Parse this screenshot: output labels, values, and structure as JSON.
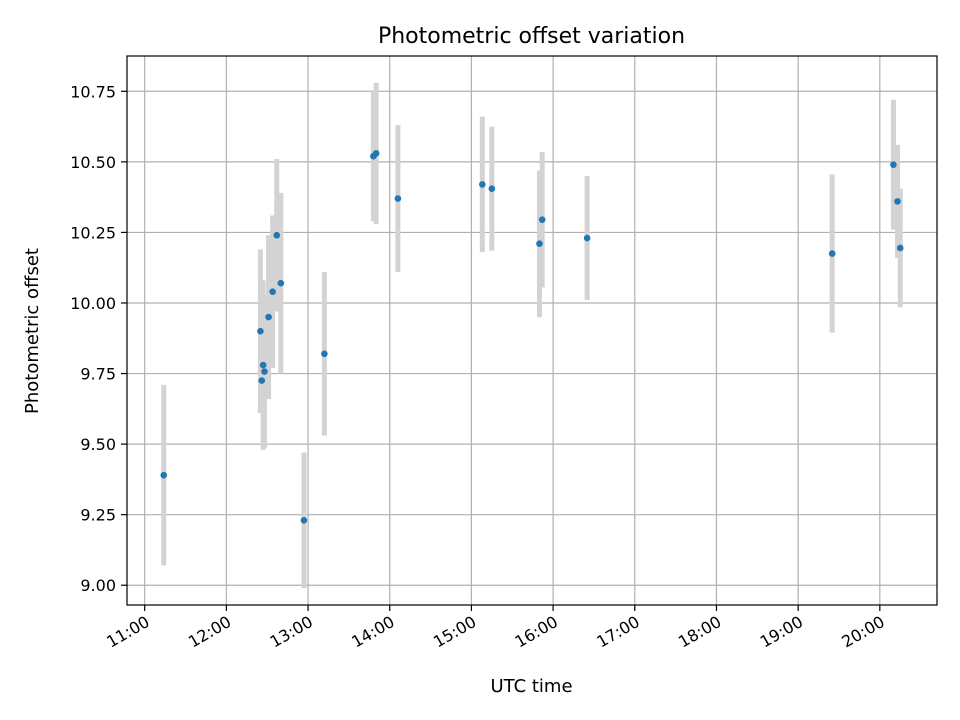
{
  "chart_data": {
    "type": "scatter",
    "title": "Photometric offset variation",
    "xlabel": "UTC time",
    "ylabel": "Photometric offset",
    "xlim": [
      "10:47",
      "20:42"
    ],
    "ylim": [
      8.93,
      10.875
    ],
    "x_ticks": [
      "11:00",
      "12:00",
      "13:00",
      "14:00",
      "15:00",
      "16:00",
      "17:00",
      "18:00",
      "19:00",
      "20:00"
    ],
    "y_ticks": [
      "9.00",
      "9.25",
      "9.50",
      "9.75",
      "10.00",
      "10.25",
      "10.50",
      "10.75"
    ],
    "grid": true,
    "errorbars": true,
    "colors": {
      "marker": "#1f77b4",
      "errorbar": "#d3d3d3",
      "grid": "#b0b0b0"
    },
    "series": [
      {
        "points": [
          {
            "t": "11:14",
            "y": 9.39,
            "err": 0.32
          },
          {
            "t": "12:25",
            "y": 9.9,
            "err": 0.29
          },
          {
            "t": "12:26",
            "y": 9.725,
            "err": 0.11
          },
          {
            "t": "12:27",
            "y": 9.78,
            "err": 0.3
          },
          {
            "t": "12:28",
            "y": 9.757,
            "err": 0.27
          },
          {
            "t": "12:31",
            "y": 9.95,
            "err": 0.29
          },
          {
            "t": "12:34",
            "y": 10.04,
            "err": 0.27
          },
          {
            "t": "12:37",
            "y": 10.24,
            "err": 0.27
          },
          {
            "t": "12:40",
            "y": 10.07,
            "err": 0.32
          },
          {
            "t": "12:57",
            "y": 9.23,
            "err": 0.24
          },
          {
            "t": "13:12",
            "y": 9.82,
            "err": 0.29
          },
          {
            "t": "13:48",
            "y": 10.52,
            "err": 0.23
          },
          {
            "t": "13:50",
            "y": 10.53,
            "err": 0.25
          },
          {
            "t": "14:06",
            "y": 10.37,
            "err": 0.26
          },
          {
            "t": "15:08",
            "y": 10.42,
            "err": 0.24
          },
          {
            "t": "15:15",
            "y": 10.405,
            "err": 0.22
          },
          {
            "t": "15:50",
            "y": 10.21,
            "err": 0.26
          },
          {
            "t": "15:52",
            "y": 10.295,
            "err": 0.24
          },
          {
            "t": "16:25",
            "y": 10.23,
            "err": 0.22
          },
          {
            "t": "19:25",
            "y": 10.175,
            "err": 0.28
          },
          {
            "t": "20:10",
            "y": 10.49,
            "err": 0.23
          },
          {
            "t": "20:13",
            "y": 10.36,
            "err": 0.2
          },
          {
            "t": "20:15",
            "y": 10.195,
            "err": 0.21
          }
        ]
      }
    ]
  }
}
